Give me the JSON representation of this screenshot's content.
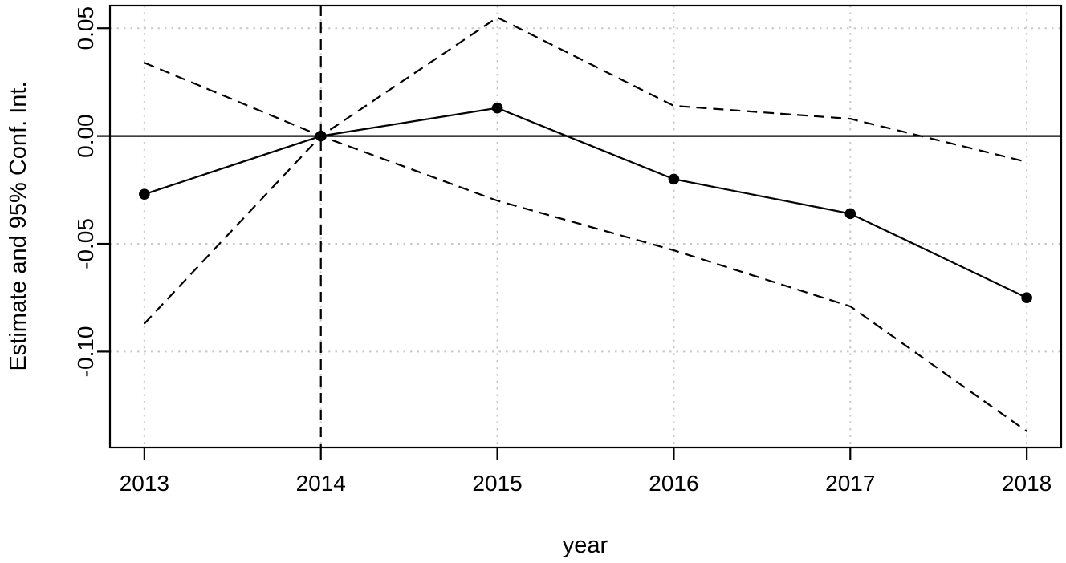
{
  "figure": {
    "background": "#ffffff"
  },
  "chart_data": {
    "type": "line",
    "title": "",
    "xlabel": "year",
    "ylabel": "Estimate and 95% Conf. Int.",
    "x": [
      2013,
      2014,
      2015,
      2016,
      2017,
      2018
    ],
    "series": [
      {
        "name": "estimate",
        "style": "solid",
        "marker": "filled-circle",
        "values": [
          -0.027,
          0.0,
          0.013,
          -0.02,
          -0.036,
          -0.075
        ]
      },
      {
        "name": "ci-upper",
        "style": "dashed",
        "marker": "none",
        "values": [
          0.034,
          0.0,
          0.055,
          0.014,
          0.008,
          -0.012
        ]
      },
      {
        "name": "ci-lower",
        "style": "dashed",
        "marker": "none",
        "values": [
          -0.087,
          0.0,
          -0.03,
          -0.053,
          -0.079,
          -0.137
        ]
      }
    ],
    "reference_lines": {
      "horizontal_y": 0,
      "vertical_x": 2014
    },
    "xticks": [
      "2013",
      "2014",
      "2015",
      "2016",
      "2017",
      "2018"
    ],
    "xtick_values": [
      2013,
      2014,
      2015,
      2016,
      2017,
      2018
    ],
    "yticks": [
      "0.05",
      "0.00",
      "-0.05",
      "-0.10"
    ],
    "ytick_values": [
      0.05,
      0.0,
      -0.05,
      -0.1
    ],
    "xlim": [
      2012.805,
      2018.195
    ],
    "ylim": [
      -0.1445,
      0.0605
    ],
    "grid": true,
    "legend": "none",
    "colors": {
      "line": "#000000",
      "grid": "#c9c9c9",
      "background": "#ffffff"
    }
  }
}
